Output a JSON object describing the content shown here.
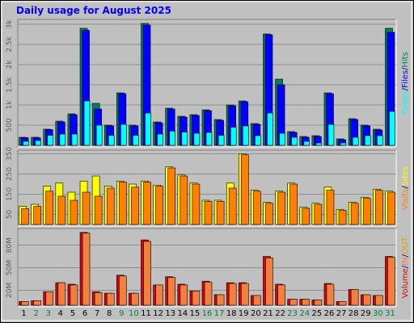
{
  "title": "Daily usage for August 2025",
  "categories": [
    "1",
    "2",
    "3",
    "4",
    "5",
    "6",
    "7",
    "8",
    "9",
    "10",
    "11",
    "12",
    "13",
    "14",
    "15",
    "16",
    "17",
    "18",
    "19",
    "20",
    "21",
    "22",
    "23",
    "24",
    "25",
    "26",
    "27",
    "28",
    "29",
    "30",
    "31"
  ],
  "category_colors": [
    "#000000",
    "#008040",
    "#008040",
    "#000000",
    "#000000",
    "#000000",
    "#000000",
    "#000000",
    "#008040",
    "#008040",
    "#000000",
    "#000000",
    "#000000",
    "#000000",
    "#000000",
    "#008040",
    "#008040",
    "#000000",
    "#000000",
    "#000000",
    "#000000",
    "#000000",
    "#008040",
    "#008040",
    "#000000",
    "#000000",
    "#000000",
    "#000000",
    "#000000",
    "#008040",
    "#008040"
  ],
  "chart_data": [
    {
      "type": "bar",
      "ylim": [
        0,
        3100
      ],
      "grid": true,
      "separator": "/",
      "legend_reversed": true,
      "yticks": [
        500,
        {
          "value": 1000,
          "label": "1k"
        },
        {
          "value": 1500,
          "label": "1.5k"
        },
        {
          "value": 2000,
          "label": "2k"
        },
        {
          "value": 2500,
          "label": "2.5k"
        },
        {
          "value": 3000,
          "label": "3k"
        }
      ],
      "series": [
        {
          "name": "Hits",
          "color": "#00805C",
          "values": [
            200,
            200,
            400,
            600,
            780,
            2900,
            1040,
            500,
            1300,
            500,
            3020,
            580,
            920,
            720,
            760,
            880,
            640,
            1000,
            1100,
            540,
            2760,
            1640,
            340,
            220,
            240,
            1300,
            160,
            660,
            500,
            400,
            2900
          ]
        },
        {
          "name": "Files",
          "color": "#0000FF",
          "values": [
            190,
            190,
            390,
            580,
            760,
            2850,
            900,
            480,
            1280,
            480,
            2980,
            560,
            900,
            700,
            740,
            860,
            620,
            980,
            1080,
            520,
            2740,
            1500,
            320,
            200,
            220,
            1280,
            140,
            640,
            480,
            380,
            2800
          ]
        },
        {
          "name": "Pages",
          "color": "#00FFFF",
          "values": [
            100,
            120,
            250,
            280,
            280,
            1100,
            500,
            250,
            520,
            250,
            800,
            280,
            350,
            330,
            300,
            320,
            250,
            450,
            480,
            240,
            800,
            300,
            200,
            100,
            60,
            520,
            60,
            200,
            240,
            240,
            840
          ]
        }
      ]
    },
    {
      "type": "bar",
      "ylim": [
        0,
        360
      ],
      "grid": true,
      "separator": "/",
      "legend_reversed": true,
      "yticks": [
        50,
        150,
        250,
        350
      ],
      "series": [
        {
          "name": "Sites",
          "color": "#FFFF00",
          "values": [
            90,
            100,
            190,
            205,
            160,
            215,
            240,
            190,
            215,
            200,
            215,
            195,
            285,
            245,
            205,
            120,
            120,
            205,
            350,
            170,
            110,
            165,
            205,
            85,
            105,
            185,
            75,
            110,
            135,
            175,
            165
          ]
        },
        {
          "name": "Visits",
          "color": "#FF8000",
          "values": [
            78,
            90,
            165,
            140,
            120,
            160,
            140,
            180,
            210,
            185,
            210,
            190,
            280,
            240,
            200,
            115,
            115,
            180,
            345,
            165,
            105,
            160,
            200,
            80,
            100,
            170,
            70,
            105,
            130,
            170,
            160
          ]
        }
      ]
    },
    {
      "type": "bar",
      "ylim": [
        0,
        100
      ],
      "grid": true,
      "separator": "/",
      "legend_reversed": false,
      "yticks": [
        {
          "value": 20,
          "label": "20M"
        },
        {
          "value": 50,
          "label": "50M"
        },
        {
          "value": 80,
          "label": "80M"
        }
      ],
      "legend_extra": [
        {
          "name": "OUT",
          "color": "#E0A000"
        }
      ],
      "series": [
        {
          "name": "Volume",
          "color": "#E00000",
          "values": [
            5,
            6,
            18,
            30,
            28,
            97,
            18,
            16,
            40,
            16,
            87,
            27,
            38,
            28,
            19,
            32,
            14,
            30,
            30,
            13,
            65,
            28,
            8,
            8,
            7,
            29,
            5,
            21,
            14,
            13,
            65
          ]
        },
        {
          "name": "IN",
          "color": "#F08040",
          "values": [
            5,
            6,
            18,
            30,
            27,
            96,
            17,
            16,
            39,
            16,
            85,
            27,
            37,
            27,
            19,
            31,
            14,
            29,
            29,
            13,
            63,
            27,
            8,
            8,
            7,
            28,
            5,
            21,
            14,
            13,
            64
          ]
        }
      ]
    }
  ]
}
